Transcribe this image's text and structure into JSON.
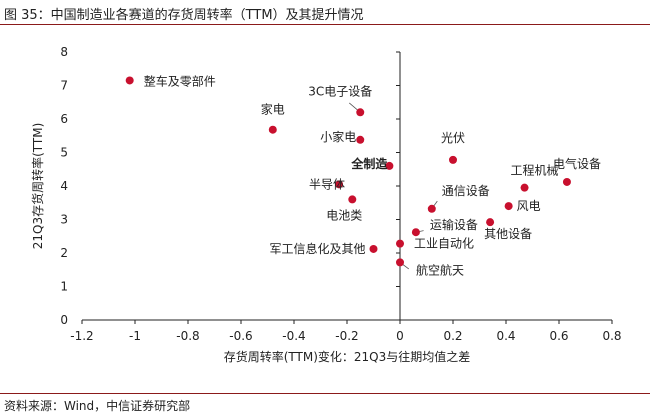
{
  "header": {
    "title": "图 35：中国制造业各赛道的存货周转率（TTM）及其提升情况"
  },
  "footer": {
    "source": "资料来源：Wind，中信证券研究部"
  },
  "colors": {
    "marker": "#c8102e",
    "rule": "#8b1a1a",
    "axis": "#222222"
  },
  "chart_data": {
    "type": "scatter",
    "title": "",
    "xlabel": "存货周转率(TTM)变化：21Q3与往期均值之差",
    "ylabel": "21Q3存货周转率(TTM)",
    "xlim": [
      -1.2,
      0.8
    ],
    "ylim": [
      0,
      8
    ],
    "xticks": [
      "-1.2",
      "-1",
      "-0.8",
      "-0.6",
      "-0.4",
      "-0.2",
      "0",
      "0.2",
      "0.4",
      "0.6",
      "0.8"
    ],
    "yticks": [
      "0",
      "1",
      "2",
      "3",
      "4",
      "5",
      "6",
      "7",
      "8"
    ],
    "grid": false,
    "points": [
      {
        "label": "整车及零部件",
        "x": -1.02,
        "y": 7.15
      },
      {
        "label": "家电",
        "x": -0.48,
        "y": 5.68
      },
      {
        "label": "3C电子设备",
        "x": -0.15,
        "y": 6.2
      },
      {
        "label": "小家电",
        "x": -0.15,
        "y": 5.38
      },
      {
        "label": "全制造",
        "x": -0.04,
        "y": 4.6,
        "bold": true
      },
      {
        "label": "半导体",
        "x": -0.23,
        "y": 4.05
      },
      {
        "label": "电池类",
        "x": -0.18,
        "y": 3.6
      },
      {
        "label": "军工信息化及其他",
        "x": -0.1,
        "y": 2.12
      },
      {
        "label": "工业自动化",
        "x": 0.0,
        "y": 2.28
      },
      {
        "label": "航空航天",
        "x": 0.0,
        "y": 1.72
      },
      {
        "label": "运输设备",
        "x": 0.06,
        "y": 2.62
      },
      {
        "label": "通信设备",
        "x": 0.12,
        "y": 3.32
      },
      {
        "label": "光伏",
        "x": 0.2,
        "y": 4.78
      },
      {
        "label": "其他设备",
        "x": 0.34,
        "y": 2.92
      },
      {
        "label": "风电",
        "x": 0.41,
        "y": 3.4
      },
      {
        "label": "工程机械",
        "x": 0.47,
        "y": 3.95
      },
      {
        "label": "电气设备",
        "x": 0.63,
        "y": 4.12
      }
    ]
  }
}
